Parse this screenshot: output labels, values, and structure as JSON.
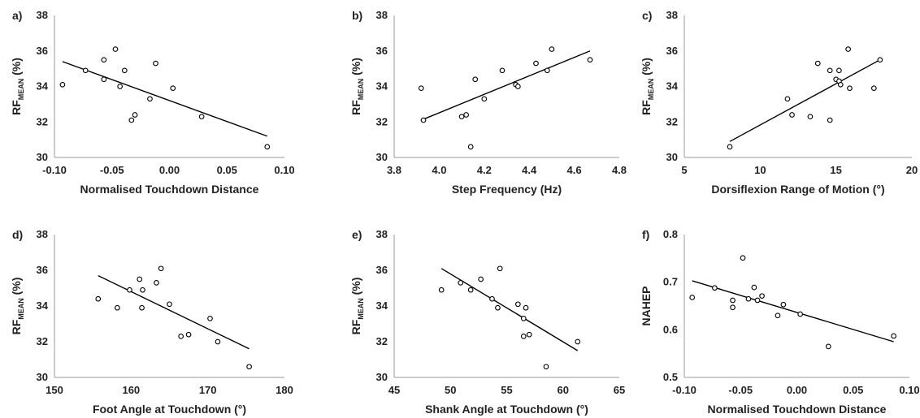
{
  "chart_data": [
    {
      "type": "scatter",
      "panel_label": "a)",
      "xlabel": "Normalised Touchdown Distance",
      "ylabel_main": "RF",
      "ylabel_sub": "MEAN",
      "ylabel_unit": "(%)",
      "xlim": [
        -0.1,
        0.1
      ],
      "ylim": [
        30,
        38
      ],
      "xticks": [
        -0.1,
        -0.05,
        0,
        0.05,
        0.1
      ],
      "xtick_labels": [
        "-0.10",
        "-0.05",
        "0.00",
        "0.05",
        "0.10"
      ],
      "yticks": [
        30,
        32,
        34,
        36,
        38
      ],
      "ytick_labels": [
        "30",
        "32",
        "34",
        "36",
        "38"
      ],
      "x": [
        -0.093,
        -0.073,
        -0.057,
        -0.057,
        -0.047,
        -0.043,
        -0.039,
        -0.033,
        -0.03,
        -0.017,
        -0.012,
        0.003,
        0.028,
        0.085
      ],
      "y": [
        34.1,
        34.9,
        35.5,
        34.4,
        36.1,
        34.0,
        34.9,
        32.1,
        32.4,
        33.3,
        35.3,
        33.9,
        32.3,
        30.6
      ],
      "trend": [
        [
          -0.093,
          35.4
        ],
        [
          0.085,
          31.2
        ]
      ]
    },
    {
      "type": "scatter",
      "panel_label": "b)",
      "xlabel": "Step Frequency (Hz)",
      "ylabel_main": "RF",
      "ylabel_sub": "MEAN",
      "ylabel_unit": "(%)",
      "xlim": [
        3.8,
        4.8
      ],
      "ylim": [
        30,
        38
      ],
      "xticks": [
        3.8,
        4.0,
        4.2,
        4.4,
        4.6,
        4.8
      ],
      "xtick_labels": [
        "3.8",
        "4.0",
        "4.2",
        "4.4",
        "4.6",
        "4.8"
      ],
      "yticks": [
        30,
        32,
        34,
        36,
        38
      ],
      "ytick_labels": [
        "30",
        "32",
        "34",
        "36",
        "38"
      ],
      "x": [
        3.92,
        3.93,
        4.1,
        4.12,
        4.14,
        4.16,
        4.2,
        4.28,
        4.34,
        4.35,
        4.43,
        4.48,
        4.5,
        4.67
      ],
      "y": [
        33.9,
        32.1,
        32.3,
        32.4,
        30.6,
        34.4,
        33.3,
        34.9,
        34.1,
        34.0,
        35.3,
        34.9,
        36.1,
        35.5
      ],
      "trend": [
        [
          3.92,
          32.1
        ],
        [
          4.67,
          36.0
        ]
      ]
    },
    {
      "type": "scatter",
      "panel_label": "c)",
      "xlabel": "Dorsiflexion Range of Motion (°)",
      "ylabel_main": "RF",
      "ylabel_sub": "MEAN",
      "ylabel_unit": "(%)",
      "xlim": [
        5,
        20
      ],
      "ylim": [
        30,
        38
      ],
      "xticks": [
        5,
        10,
        15,
        20
      ],
      "xtick_labels": [
        "5",
        "10",
        "15",
        "20"
      ],
      "yticks": [
        30,
        32,
        34,
        36,
        38
      ],
      "ytick_labels": [
        "30",
        "32",
        "34",
        "36",
        "38"
      ],
      "x": [
        8.0,
        11.8,
        12.1,
        13.3,
        13.8,
        14.6,
        14.6,
        15.0,
        15.2,
        15.2,
        15.3,
        15.8,
        15.9,
        17.5,
        17.9
      ],
      "y": [
        30.6,
        33.3,
        32.4,
        32.3,
        35.3,
        34.9,
        32.1,
        34.4,
        34.9,
        34.3,
        34.1,
        36.1,
        33.9,
        33.9,
        35.5
      ],
      "trend": [
        [
          8.0,
          30.9
        ],
        [
          17.9,
          35.5
        ]
      ]
    },
    {
      "type": "scatter",
      "panel_label": "d)",
      "xlabel": "Foot Angle at Touchdown (°)",
      "ylabel_main": "RF",
      "ylabel_sub": "MEAN",
      "ylabel_unit": "(%)",
      "xlim": [
        150,
        180
      ],
      "ylim": [
        30,
        38
      ],
      "xticks": [
        150,
        160,
        170,
        180
      ],
      "xtick_labels": [
        "150",
        "160",
        "170",
        "180"
      ],
      "yticks": [
        30,
        32,
        34,
        36,
        38
      ],
      "ytick_labels": [
        "30",
        "32",
        "34",
        "36",
        "38"
      ],
      "x": [
        155.7,
        158.2,
        159.8,
        161.1,
        161.5,
        161.4,
        163.3,
        163.9,
        165.0,
        166.5,
        167.5,
        170.3,
        171.3,
        175.4
      ],
      "y": [
        34.4,
        33.9,
        34.9,
        35.5,
        34.9,
        33.9,
        35.3,
        36.1,
        34.1,
        32.3,
        32.4,
        33.3,
        32.0,
        30.6
      ],
      "trend": [
        [
          155.7,
          35.7
        ],
        [
          175.4,
          31.6
        ]
      ]
    },
    {
      "type": "scatter",
      "panel_label": "e)",
      "xlabel": "Shank Angle at Touchdown (°)",
      "ylabel_main": "RF",
      "ylabel_sub": "MEAN",
      "ylabel_unit": "(%)",
      "xlim": [
        45,
        65
      ],
      "ylim": [
        30,
        38
      ],
      "xticks": [
        45,
        50,
        55,
        60,
        65
      ],
      "xtick_labels": [
        "45",
        "50",
        "55",
        "60",
        "65"
      ],
      "yticks": [
        30,
        32,
        34,
        36,
        38
      ],
      "ytick_labels": [
        "30",
        "32",
        "34",
        "36",
        "38"
      ],
      "x": [
        49.2,
        50.9,
        51.8,
        52.7,
        53.7,
        54.2,
        54.4,
        56.0,
        56.5,
        56.5,
        56.7,
        57.0,
        58.5,
        61.3
      ],
      "y": [
        34.9,
        35.3,
        34.9,
        35.5,
        34.4,
        33.9,
        36.1,
        34.1,
        32.3,
        33.3,
        33.9,
        32.4,
        30.6,
        32.0
      ],
      "trend": [
        [
          49.2,
          36.1
        ],
        [
          61.3,
          31.5
        ]
      ]
    },
    {
      "type": "scatter",
      "panel_label": "f)",
      "xlabel": "Normalised Touchdown Distance",
      "ylabel_main": "NAHEP",
      "ylabel_sub": "",
      "ylabel_unit": "",
      "xlim": [
        -0.1,
        0.1
      ],
      "ylim": [
        0.5,
        0.8
      ],
      "xticks": [
        -0.1,
        -0.05,
        0,
        0.05,
        0.1
      ],
      "xtick_labels": [
        "-0.10",
        "-0.05",
        "0.00",
        "0.05",
        "0.10"
      ],
      "yticks": [
        0.5,
        0.6,
        0.7,
        0.8
      ],
      "ytick_labels": [
        "0.5",
        "0.6",
        "0.7",
        "0.8"
      ],
      "x": [
        -0.093,
        -0.073,
        -0.057,
        -0.057,
        -0.048,
        -0.043,
        -0.038,
        -0.035,
        -0.031,
        -0.017,
        -0.012,
        0.003,
        0.028,
        0.086
      ],
      "y": [
        0.668,
        0.688,
        0.647,
        0.662,
        0.751,
        0.665,
        0.689,
        0.662,
        0.671,
        0.63,
        0.653,
        0.633,
        0.565,
        0.587
      ],
      "trend": [
        [
          -0.093,
          0.703
        ],
        [
          0.086,
          0.575
        ]
      ]
    }
  ]
}
